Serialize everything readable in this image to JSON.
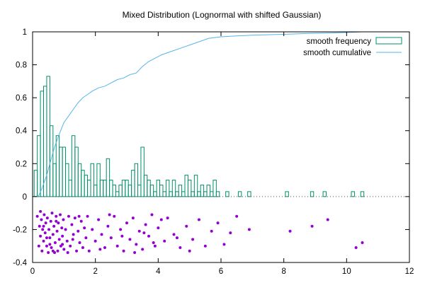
{
  "chart_data": {
    "type": "bar",
    "title": "Mixed Distribution (Lognormal with shifted Gaussian)",
    "xlabel": "",
    "ylabel": "",
    "xlim": [
      0,
      12
    ],
    "ylim": [
      -0.4,
      1
    ],
    "x_ticks": [
      0,
      2,
      4,
      6,
      8,
      10,
      12
    ],
    "y_ticks": [
      -0.4,
      -0.2,
      0,
      0.2,
      0.4,
      0.6,
      0.8,
      1
    ],
    "grid": false,
    "legend_position": "top-right",
    "zero_line": "dotted",
    "bin_width": 0.1,
    "series": [
      {
        "name": "smooth frequency",
        "type": "histogram",
        "color": "#00906a",
        "bins": [
          [
            0.1,
            0.16
          ],
          [
            0.2,
            0.37
          ],
          [
            0.3,
            0.64
          ],
          [
            0.4,
            0.67
          ],
          [
            0.5,
            0.73
          ],
          [
            0.6,
            0.43
          ],
          [
            0.7,
            0.2
          ],
          [
            0.8,
            0.37
          ],
          [
            0.9,
            0.3
          ],
          [
            1.0,
            0.3
          ],
          [
            1.1,
            0.2
          ],
          [
            1.2,
            0.1
          ],
          [
            1.3,
            0.37
          ],
          [
            1.4,
            0.3
          ],
          [
            1.5,
            0.2
          ],
          [
            1.6,
            0.16
          ],
          [
            1.7,
            0.13
          ],
          [
            1.8,
            0.1
          ],
          [
            1.9,
            0.2
          ],
          [
            2.0,
            0.07
          ],
          [
            2.1,
            0.2
          ],
          [
            2.2,
            0.1
          ],
          [
            2.3,
            0.1
          ],
          [
            2.4,
            0.23
          ],
          [
            2.5,
            0.1
          ],
          [
            2.6,
            0.07
          ],
          [
            2.7,
            0.03
          ],
          [
            2.8,
            0.07
          ],
          [
            2.9,
            0.1
          ],
          [
            3.0,
            0.1
          ],
          [
            3.1,
            0.07
          ],
          [
            3.2,
            0.16
          ],
          [
            3.3,
            0.2
          ],
          [
            3.4,
            0.07
          ],
          [
            3.5,
            0.3
          ],
          [
            3.6,
            0.13
          ],
          [
            3.7,
            0.1
          ],
          [
            3.8,
            0.07
          ],
          [
            3.9,
            0.03
          ],
          [
            4.0,
            0.1
          ],
          [
            4.1,
            0.07
          ],
          [
            4.2,
            0.03
          ],
          [
            4.3,
            0.1
          ],
          [
            4.4,
            0.03
          ],
          [
            4.5,
            0.1
          ],
          [
            4.6,
            0.03
          ],
          [
            4.7,
            0.07
          ],
          [
            4.8,
            0.03
          ],
          [
            4.9,
            0.13
          ],
          [
            5.0,
            0.1
          ],
          [
            5.1,
            0.03
          ],
          [
            5.2,
            0.13
          ],
          [
            5.3,
            0.03
          ],
          [
            5.4,
            0.07
          ],
          [
            5.5,
            0.03
          ],
          [
            5.6,
            0.07
          ],
          [
            5.7,
            0.03
          ],
          [
            5.8,
            0.1
          ],
          [
            5.9,
            0.03
          ],
          [
            6.2,
            0.03
          ],
          [
            6.6,
            0.03
          ],
          [
            6.9,
            0.03
          ],
          [
            8.1,
            0.03
          ],
          [
            8.9,
            0.03
          ],
          [
            9.3,
            0.03
          ],
          [
            10.2,
            0.03
          ],
          [
            10.5,
            0.03
          ]
        ]
      },
      {
        "name": "smooth cumulative",
        "type": "line",
        "color": "#56b4e9",
        "points": [
          [
            0.18,
            0.0
          ],
          [
            0.3,
            0.05
          ],
          [
            0.45,
            0.13
          ],
          [
            0.55,
            0.2
          ],
          [
            0.7,
            0.3
          ],
          [
            0.85,
            0.38
          ],
          [
            1.0,
            0.45
          ],
          [
            1.15,
            0.49
          ],
          [
            1.3,
            0.53
          ],
          [
            1.45,
            0.57
          ],
          [
            1.6,
            0.6
          ],
          [
            1.75,
            0.62
          ],
          [
            1.9,
            0.64
          ],
          [
            2.1,
            0.66
          ],
          [
            2.3,
            0.67
          ],
          [
            2.5,
            0.69
          ],
          [
            2.7,
            0.71
          ],
          [
            2.9,
            0.72
          ],
          [
            3.1,
            0.74
          ],
          [
            3.3,
            0.75
          ],
          [
            3.5,
            0.79
          ],
          [
            3.7,
            0.82
          ],
          [
            3.9,
            0.84
          ],
          [
            4.1,
            0.86
          ],
          [
            4.4,
            0.88
          ],
          [
            4.7,
            0.9
          ],
          [
            5.0,
            0.92
          ],
          [
            5.3,
            0.94
          ],
          [
            5.6,
            0.96
          ],
          [
            6.0,
            0.97
          ],
          [
            6.5,
            0.975
          ],
          [
            7.0,
            0.98
          ],
          [
            8.0,
            0.985
          ],
          [
            8.8,
            0.99
          ],
          [
            9.5,
            0.993
          ],
          [
            10.0,
            0.996
          ],
          [
            10.5,
            1.0
          ]
        ]
      },
      {
        "name": "",
        "type": "scatter",
        "color": "#9400d3",
        "points": [
          [
            0.15,
            -0.12
          ],
          [
            0.2,
            -0.3
          ],
          [
            0.22,
            -0.18
          ],
          [
            0.25,
            -0.24
          ],
          [
            0.28,
            -0.14
          ],
          [
            0.3,
            -0.33
          ],
          [
            0.32,
            -0.2
          ],
          [
            0.35,
            -0.27
          ],
          [
            0.37,
            -0.11
          ],
          [
            0.4,
            -0.22
          ],
          [
            0.42,
            -0.16
          ],
          [
            0.45,
            -0.3
          ],
          [
            0.47,
            -0.13
          ],
          [
            0.5,
            -0.34
          ],
          [
            0.52,
            -0.2
          ],
          [
            0.55,
            -0.25
          ],
          [
            0.58,
            -0.15
          ],
          [
            0.6,
            -0.31
          ],
          [
            0.62,
            -0.1
          ],
          [
            0.65,
            -0.23
          ],
          [
            0.68,
            -0.18
          ],
          [
            0.7,
            -0.34
          ],
          [
            0.72,
            -0.28
          ],
          [
            0.75,
            -0.12
          ],
          [
            0.78,
            -0.21
          ],
          [
            0.8,
            -0.33
          ],
          [
            0.82,
            -0.16
          ],
          [
            0.85,
            -0.26
          ],
          [
            0.88,
            -0.11
          ],
          [
            0.9,
            -0.3
          ],
          [
            0.93,
            -0.19
          ],
          [
            0.95,
            -0.24
          ],
          [
            0.98,
            -0.14
          ],
          [
            1.0,
            -0.32
          ],
          [
            1.05,
            -0.2
          ],
          [
            1.1,
            -0.27
          ],
          [
            1.15,
            -0.12
          ],
          [
            1.2,
            -0.3
          ],
          [
            1.25,
            -0.17
          ],
          [
            1.3,
            -0.23
          ],
          [
            1.35,
            -0.13
          ],
          [
            1.4,
            -0.33
          ],
          [
            1.45,
            -0.21
          ],
          [
            1.5,
            -0.28
          ],
          [
            1.55,
            -0.15
          ],
          [
            1.6,
            -0.31
          ],
          [
            1.65,
            -0.19
          ],
          [
            1.7,
            -0.25
          ],
          [
            1.75,
            -0.12
          ],
          [
            1.8,
            -0.33
          ],
          [
            0.25,
            -0.09
          ],
          [
            0.55,
            -0.29
          ],
          [
            0.35,
            -0.18
          ],
          [
            0.65,
            -0.33
          ],
          [
            0.45,
            -0.25
          ],
          [
            0.75,
            -0.15
          ],
          [
            0.95,
            -0.29
          ],
          [
            1.12,
            -0.34
          ],
          [
            1.28,
            -0.26
          ],
          [
            1.48,
            -0.12
          ],
          [
            1.9,
            -0.2
          ],
          [
            2.0,
            -0.27
          ],
          [
            2.1,
            -0.14
          ],
          [
            2.2,
            -0.23
          ],
          [
            2.3,
            -0.31
          ],
          [
            2.4,
            -0.18
          ],
          [
            2.5,
            -0.25
          ],
          [
            2.6,
            -0.12
          ],
          [
            2.7,
            -0.3
          ],
          [
            2.8,
            -0.2
          ],
          [
            2.9,
            -0.33
          ],
          [
            3.0,
            -0.16
          ],
          [
            3.1,
            -0.26
          ],
          [
            3.2,
            -0.13
          ],
          [
            3.3,
            -0.29
          ],
          [
            3.4,
            -0.21
          ],
          [
            3.5,
            -0.32
          ],
          [
            3.6,
            -0.17
          ],
          [
            3.7,
            -0.24
          ],
          [
            3.8,
            -0.11
          ],
          [
            3.9,
            -0.3
          ],
          [
            4.0,
            -0.19
          ],
          [
            4.2,
            -0.27
          ],
          [
            4.3,
            -0.13
          ],
          [
            4.5,
            -0.23
          ],
          [
            4.7,
            -0.31
          ],
          [
            4.9,
            -0.18
          ],
          [
            5.1,
            -0.26
          ],
          [
            5.3,
            -0.14
          ],
          [
            5.5,
            -0.3
          ],
          [
            5.7,
            -0.21
          ],
          [
            5.9,
            -0.16
          ],
          [
            6.1,
            -0.29
          ],
          [
            6.3,
            -0.22
          ],
          [
            6.5,
            -0.12
          ],
          [
            6.9,
            -0.2
          ],
          [
            8.2,
            -0.21
          ],
          [
            8.9,
            -0.18
          ],
          [
            9.4,
            -0.14
          ],
          [
            10.3,
            -0.31
          ],
          [
            10.5,
            -0.28
          ],
          [
            2.15,
            -0.32
          ],
          [
            2.45,
            -0.11
          ],
          [
            2.85,
            -0.24
          ],
          [
            3.25,
            -0.34
          ],
          [
            3.55,
            -0.22
          ],
          [
            3.85,
            -0.28
          ],
          [
            4.1,
            -0.14
          ],
          [
            4.6,
            -0.25
          ],
          [
            5.0,
            -0.33
          ]
        ]
      }
    ]
  }
}
